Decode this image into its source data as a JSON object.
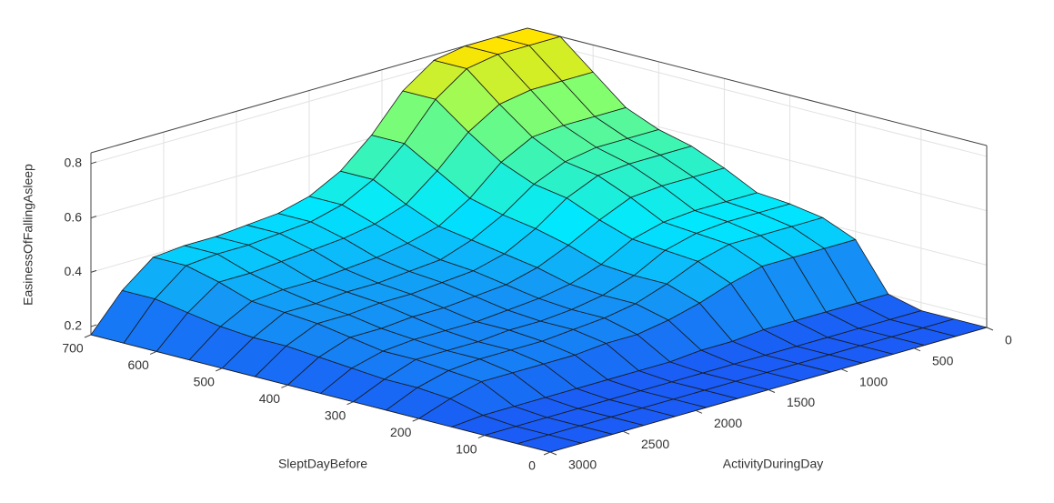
{
  "chart_data": {
    "type": "surface",
    "xlabel": "ActivityDuringDay",
    "ylabel": "SleptDayBefore",
    "zlabel": "EasinessOfFallingAsleep",
    "x": [
      0,
      214.29,
      428.57,
      642.86,
      857.14,
      1071.43,
      1285.71,
      1500,
      1714.29,
      1928.57,
      2142.86,
      2357.14,
      2571.43,
      2785.71,
      3000
    ],
    "y": [
      0,
      50,
      100,
      150,
      200,
      250,
      300,
      350,
      400,
      450,
      500,
      550,
      600,
      650,
      700
    ],
    "z": [
      [
        0.17,
        0.17,
        0.17,
        0.17,
        0.17,
        0.17,
        0.17,
        0.17,
        0.17,
        0.17,
        0.17,
        0.17,
        0.17,
        0.17,
        0.17
      ],
      [
        0.17,
        0.17,
        0.17,
        0.17,
        0.17,
        0.17,
        0.17,
        0.17,
        0.17,
        0.17,
        0.17,
        0.17,
        0.17,
        0.17,
        0.17
      ],
      [
        0.17,
        0.17,
        0.17,
        0.17,
        0.17,
        0.17,
        0.17,
        0.17,
        0.17,
        0.17,
        0.17,
        0.17,
        0.17,
        0.17,
        0.17
      ],
      [
        0.2,
        0.2,
        0.2,
        0.2,
        0.2,
        0.19,
        0.19,
        0.18,
        0.18,
        0.18,
        0.18,
        0.18,
        0.18,
        0.18,
        0.17
      ],
      [
        0.37,
        0.37,
        0.37,
        0.37,
        0.34,
        0.3,
        0.27,
        0.25,
        0.25,
        0.24,
        0.24,
        0.24,
        0.24,
        0.21,
        0.17
      ],
      [
        0.42,
        0.42,
        0.42,
        0.42,
        0.39,
        0.34,
        0.3,
        0.28,
        0.27,
        0.26,
        0.26,
        0.26,
        0.25,
        0.22,
        0.17
      ],
      [
        0.44,
        0.44,
        0.44,
        0.43,
        0.4,
        0.34,
        0.3,
        0.28,
        0.27,
        0.27,
        0.26,
        0.26,
        0.26,
        0.22,
        0.17
      ],
      [
        0.45,
        0.45,
        0.45,
        0.44,
        0.41,
        0.35,
        0.31,
        0.29,
        0.28,
        0.27,
        0.27,
        0.27,
        0.26,
        0.23,
        0.17
      ],
      [
        0.51,
        0.51,
        0.51,
        0.5,
        0.45,
        0.39,
        0.34,
        0.31,
        0.3,
        0.29,
        0.29,
        0.28,
        0.28,
        0.24,
        0.17
      ],
      [
        0.56,
        0.56,
        0.56,
        0.55,
        0.5,
        0.42,
        0.36,
        0.33,
        0.32,
        0.31,
        0.31,
        0.3,
        0.3,
        0.25,
        0.17
      ],
      [
        0.59,
        0.59,
        0.59,
        0.57,
        0.52,
        0.44,
        0.38,
        0.34,
        0.33,
        0.32,
        0.32,
        0.31,
        0.31,
        0.25,
        0.17
      ],
      [
        0.64,
        0.64,
        0.64,
        0.63,
        0.57,
        0.47,
        0.4,
        0.37,
        0.35,
        0.34,
        0.33,
        0.33,
        0.32,
        0.26,
        0.17
      ],
      [
        0.74,
        0.74,
        0.74,
        0.72,
        0.65,
        0.54,
        0.45,
        0.41,
        0.39,
        0.38,
        0.37,
        0.36,
        0.36,
        0.28,
        0.17
      ],
      [
        0.84,
        0.84,
        0.84,
        0.82,
        0.74,
        0.61,
        0.51,
        0.45,
        0.42,
        0.41,
        0.4,
        0.4,
        0.39,
        0.3,
        0.17
      ],
      [
        0.84,
        0.84,
        0.84,
        0.82,
        0.74,
        0.61,
        0.51,
        0.45,
        0.42,
        0.41,
        0.4,
        0.4,
        0.39,
        0.3,
        0.17
      ]
    ],
    "xlim": [
      0,
      3000
    ],
    "ylim": [
      0,
      700
    ],
    "zlim": [
      0.17,
      0.84
    ],
    "xticks": [
      0,
      500,
      1000,
      1500,
      2000,
      2500,
      3000
    ],
    "yticks": [
      0,
      100,
      200,
      300,
      400,
      500,
      600,
      700
    ],
    "zticks": [
      0.2,
      0.4,
      0.6,
      0.8
    ],
    "grid": true,
    "colormap": [
      "#1a5cf5",
      "#1496f5",
      "#00e8ff",
      "#3cf5b4",
      "#8cff66",
      "#ffe400"
    ]
  }
}
